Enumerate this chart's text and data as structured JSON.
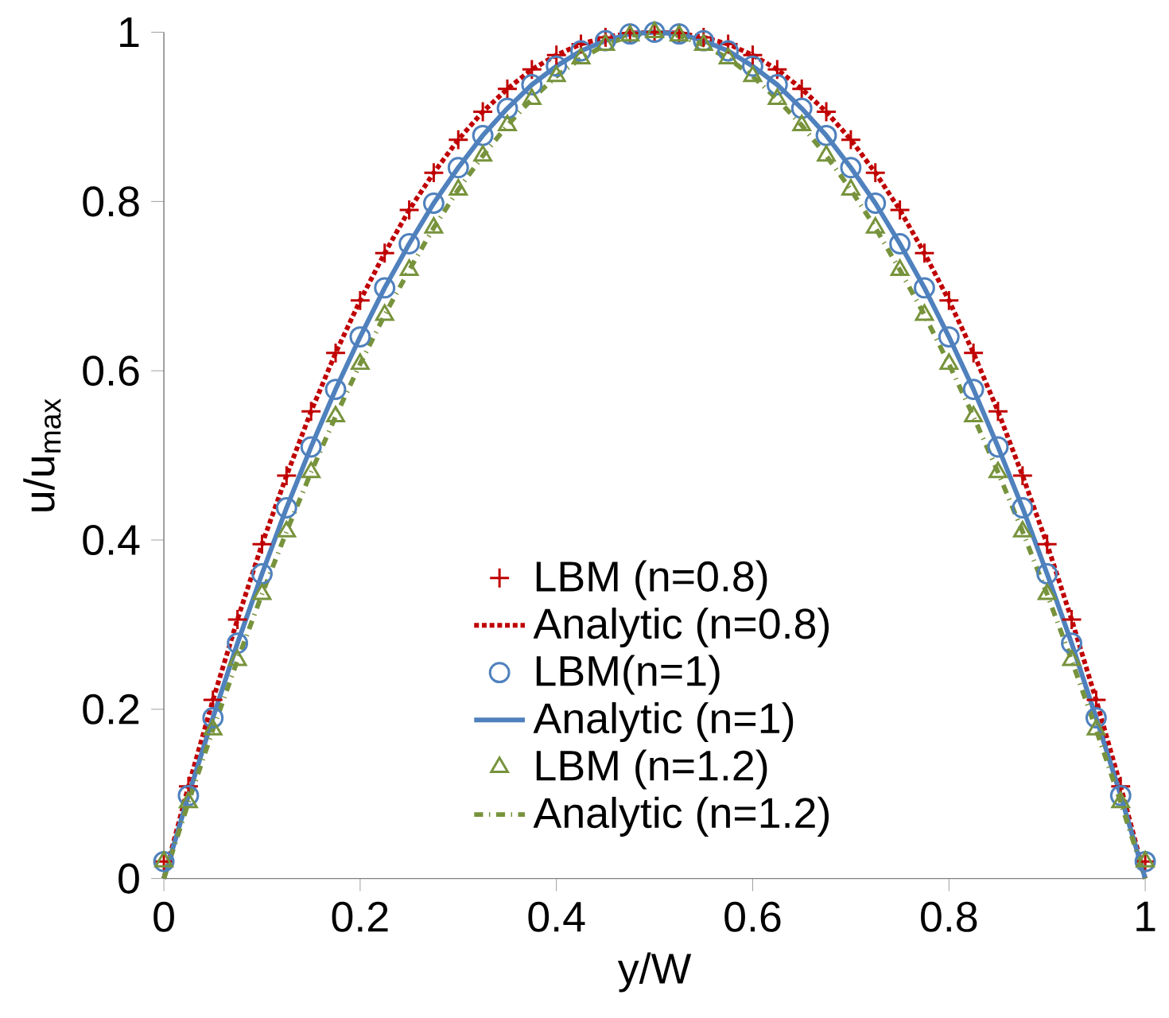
{
  "chart_data": {
    "type": "line",
    "xlabel": "y/W",
    "ylabel": "u/u$_{max}$",
    "x": [
      0,
      0.025,
      0.05,
      0.075,
      0.1,
      0.125,
      0.15,
      0.175,
      0.2,
      0.225,
      0.25,
      0.275,
      0.3,
      0.325,
      0.35,
      0.375,
      0.4,
      0.425,
      0.45,
      0.475,
      0.5,
      0.525,
      0.55,
      0.575,
      0.6,
      0.625,
      0.65,
      0.675,
      0.7,
      0.725,
      0.75,
      0.775,
      0.8,
      0.825,
      0.85,
      0.875,
      0.9,
      0.925,
      0.95,
      0.975,
      1
    ],
    "series": [
      {
        "name": "LBM (n=0.8)",
        "type": "scatter",
        "marker": "cross",
        "color": "#c00000",
        "values": [
          0.02,
          0.109,
          0.211,
          0.306,
          0.395,
          0.476,
          0.552,
          0.621,
          0.683,
          0.739,
          0.79,
          0.834,
          0.873,
          0.906,
          0.933,
          0.956,
          0.973,
          0.986,
          0.994,
          0.999,
          1,
          0.999,
          0.994,
          0.986,
          0.973,
          0.956,
          0.933,
          0.906,
          0.873,
          0.834,
          0.79,
          0.739,
          0.683,
          0.621,
          0.552,
          0.476,
          0.395,
          0.306,
          0.211,
          0.109,
          0.02
        ]
      },
      {
        "name": "Analytic (n=0.8)",
        "line_style": "dotted",
        "color": "#c00000",
        "values": [
          0,
          0.109,
          0.211,
          0.306,
          0.395,
          0.476,
          0.552,
          0.621,
          0.683,
          0.739,
          0.79,
          0.834,
          0.873,
          0.906,
          0.933,
          0.956,
          0.973,
          0.986,
          0.994,
          0.999,
          1,
          0.999,
          0.994,
          0.986,
          0.973,
          0.956,
          0.933,
          0.906,
          0.873,
          0.834,
          0.79,
          0.739,
          0.683,
          0.621,
          0.552,
          0.476,
          0.395,
          0.306,
          0.211,
          0.109,
          0
        ]
      },
      {
        "name": "LBM(n=1)",
        "type": "scatter",
        "marker": "circle",
        "color": "#4f81bd",
        "values": [
          0.02,
          0.098,
          0.19,
          0.278,
          0.36,
          0.438,
          0.51,
          0.578,
          0.64,
          0.698,
          0.75,
          0.798,
          0.84,
          0.878,
          0.91,
          0.938,
          0.96,
          0.978,
          0.99,
          0.998,
          1,
          0.998,
          0.99,
          0.978,
          0.96,
          0.938,
          0.91,
          0.878,
          0.84,
          0.798,
          0.75,
          0.698,
          0.64,
          0.578,
          0.51,
          0.438,
          0.36,
          0.278,
          0.19,
          0.098,
          0.02
        ]
      },
      {
        "name": "Analytic (n=1)",
        "line_style": "solid",
        "color": "#4f81bd",
        "values": [
          0,
          0.098,
          0.19,
          0.278,
          0.36,
          0.438,
          0.51,
          0.578,
          0.64,
          0.698,
          0.75,
          0.798,
          0.84,
          0.878,
          0.91,
          0.938,
          0.96,
          0.978,
          0.99,
          0.998,
          1,
          0.998,
          0.99,
          0.978,
          0.96,
          0.938,
          0.91,
          0.878,
          0.84,
          0.798,
          0.75,
          0.698,
          0.64,
          0.578,
          0.51,
          0.438,
          0.36,
          0.278,
          0.19,
          0.098,
          0
        ]
      },
      {
        "name": "LBM (n=1.2)",
        "type": "scatter",
        "marker": "triangle",
        "color": "#77933c",
        "values": [
          0.02,
          0.09,
          0.176,
          0.258,
          0.336,
          0.41,
          0.48,
          0.546,
          0.608,
          0.666,
          0.719,
          0.769,
          0.814,
          0.854,
          0.89,
          0.921,
          0.948,
          0.969,
          0.985,
          0.996,
          1,
          0.996,
          0.985,
          0.969,
          0.948,
          0.921,
          0.89,
          0.854,
          0.814,
          0.769,
          0.719,
          0.666,
          0.608,
          0.546,
          0.48,
          0.41,
          0.336,
          0.258,
          0.176,
          0.09,
          0.02
        ]
      },
      {
        "name": "Analytic (n=1.2)",
        "line_style": "dashdot",
        "color": "#77933c",
        "values": [
          0,
          0.09,
          0.176,
          0.258,
          0.336,
          0.41,
          0.48,
          0.546,
          0.608,
          0.666,
          0.719,
          0.769,
          0.814,
          0.854,
          0.89,
          0.921,
          0.948,
          0.969,
          0.985,
          0.996,
          1,
          0.996,
          0.985,
          0.969,
          0.948,
          0.921,
          0.89,
          0.854,
          0.814,
          0.769,
          0.719,
          0.666,
          0.608,
          0.546,
          0.48,
          0.41,
          0.336,
          0.258,
          0.176,
          0.09,
          0
        ]
      }
    ],
    "xlim": [
      0,
      1
    ],
    "ylim": [
      0,
      1
    ],
    "xticks": [
      0,
      0.2,
      0.4,
      0.6,
      0.8,
      1
    ],
    "yticks": [
      0,
      0.2,
      0.4,
      0.6,
      0.8,
      1
    ],
    "legend": "bottom"
  }
}
